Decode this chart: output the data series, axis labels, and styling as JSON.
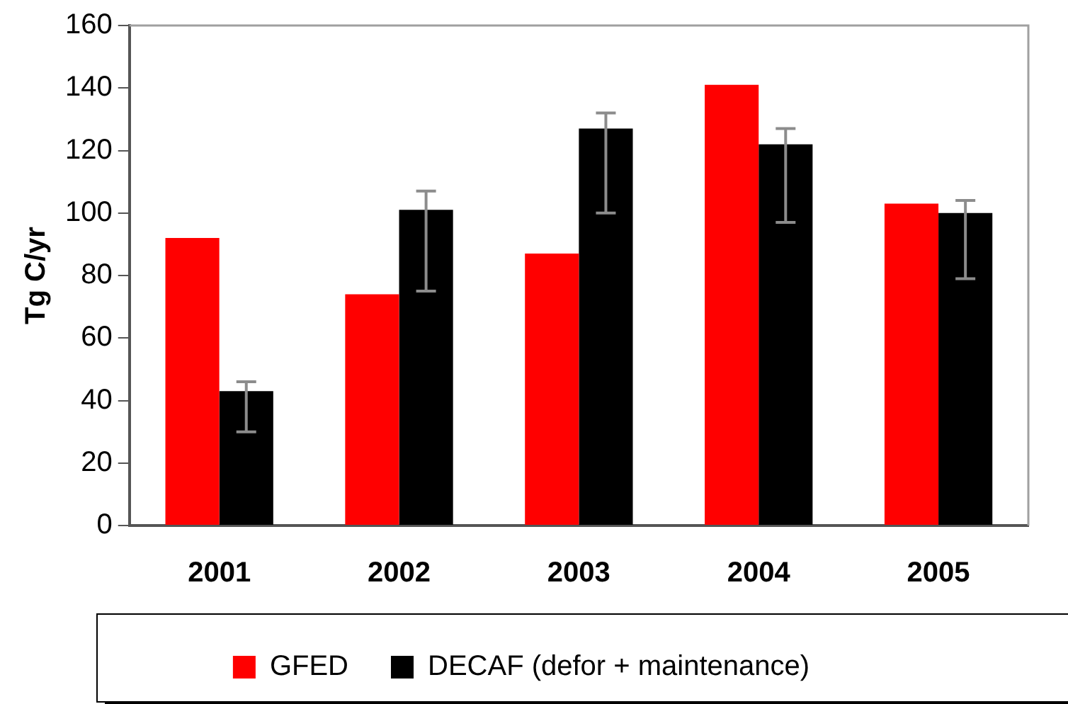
{
  "chart_data": {
    "type": "bar",
    "ylabel": "Tg C/yr",
    "categories": [
      "2001",
      "2002",
      "2003",
      "2004",
      "2005"
    ],
    "series": [
      {
        "name": "GFED",
        "color": "#ff0000",
        "values": [
          92,
          74,
          87,
          141,
          103
        ]
      },
      {
        "name": "DECAF (defor + maintenance)",
        "color": "#000000",
        "values": [
          43,
          101,
          127,
          122,
          100
        ],
        "errors": [
          [
            30,
            46
          ],
          [
            75,
            107
          ],
          [
            100,
            132
          ],
          [
            97,
            127
          ],
          [
            79,
            104
          ]
        ]
      }
    ],
    "ylim": [
      0,
      160
    ],
    "yticks": [
      0,
      20,
      40,
      60,
      80,
      100,
      120,
      140,
      160
    ],
    "grid": false,
    "legend": "bottom"
  }
}
